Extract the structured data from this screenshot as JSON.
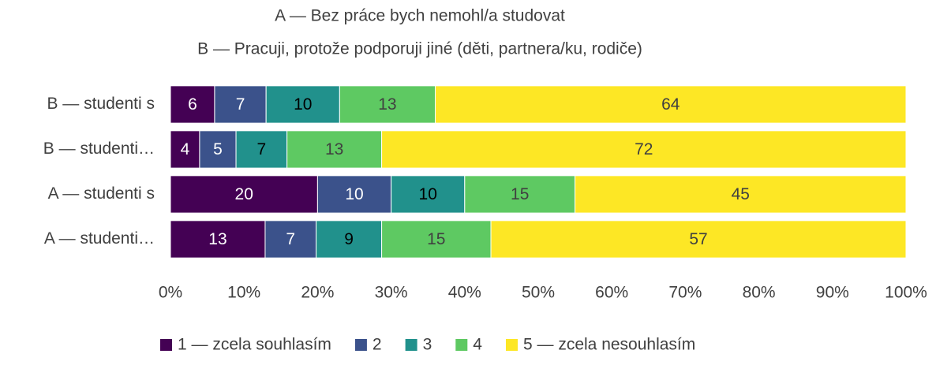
{
  "chart_data": {
    "type": "bar",
    "orientation": "horizontal",
    "stacking": "percent",
    "title": "A — Bez práce bych nemohl/a studovat",
    "subtitle": "B — Pracuji, protože podporuji jiné (děti, partnera/ku, rodiče)",
    "categories": [
      "B — studenti s",
      "B — studenti…",
      "A — studenti s",
      "A — studenti…"
    ],
    "series": [
      {
        "name": "1 — zcela souhlasím",
        "color": "#440154",
        "values": [
          6,
          4,
          20,
          13
        ]
      },
      {
        "name": "2",
        "color": "#3b528b",
        "values": [
          7,
          5,
          10,
          7
        ]
      },
      {
        "name": "3",
        "color": "#21918c",
        "values": [
          10,
          7,
          10,
          9
        ]
      },
      {
        "name": "4",
        "color": "#5ec962",
        "values": [
          13,
          13,
          15,
          15
        ]
      },
      {
        "name": "5 — zcela nesouhlasím",
        "color": "#fde725",
        "values": [
          64,
          72,
          45,
          57
        ]
      }
    ],
    "xlim": [
      0,
      100
    ],
    "xticks": [
      {
        "value": 0,
        "label": "0%"
      },
      {
        "value": 10,
        "label": "10%"
      },
      {
        "value": 20,
        "label": "20%"
      },
      {
        "value": 30,
        "label": "30%"
      },
      {
        "value": 40,
        "label": "40%"
      },
      {
        "value": 50,
        "label": "50%"
      },
      {
        "value": 60,
        "label": "60%"
      },
      {
        "value": 70,
        "label": "70%"
      },
      {
        "value": 80,
        "label": "80%"
      },
      {
        "value": 90,
        "label": "90%"
      },
      {
        "value": 100,
        "label": "100%"
      }
    ],
    "legend": "bottom"
  }
}
